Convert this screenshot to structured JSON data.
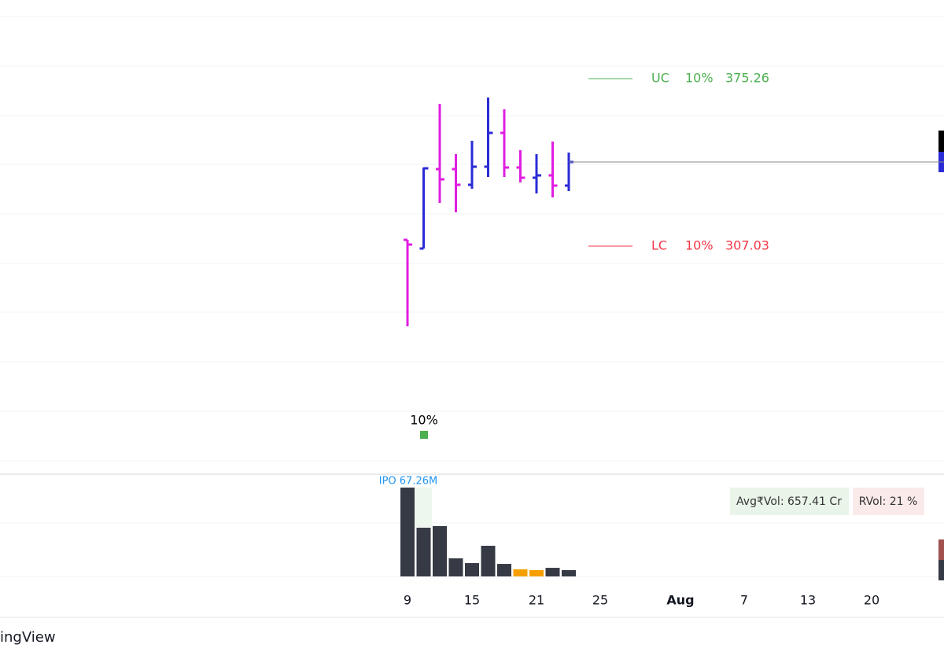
{
  "chart_data": {
    "type": "ohlc",
    "bar_colors": [
      "#e01ee0",
      "#2b2bd6",
      "#e01ee0",
      "#e01ee0",
      "#2b2bd6",
      "#2b2bd6",
      "#e01ee0",
      "#e01ee0",
      "#2b2bd6",
      "#e01ee0",
      "#2b2bd6"
    ],
    "open": [
      309.6,
      306.07,
      338.42,
      338.42,
      332.02,
      339.39,
      353.16,
      339.07,
      334.9,
      335.86,
      331.7
    ],
    "high": [
      309.6,
      339.07,
      365.01,
      344.51,
      349.96,
      367.57,
      362.77,
      346.11,
      344.51,
      349.64,
      345.15
    ],
    "low": [
      274.36,
      306.07,
      324.65,
      320.81,
      330.42,
      335.22,
      335.22,
      332.98,
      328.49,
      326.89,
      329.46
    ],
    "close": [
      307.68,
      338.74,
      334.26,
      332.02,
      339.39,
      353.16,
      339.07,
      334.9,
      335.86,
      331.7,
      341.31
    ],
    "ylim": [
      215.1,
      407.3
    ],
    "volume": [
      67.26,
      36.9,
      38.1,
      13.7,
      10.1,
      23.2,
      9.5,
      5.4,
      4.8,
      6.5,
      4.8
    ],
    "volume_colors": [
      "#363a45",
      "#363a45",
      "#363a45",
      "#363a45",
      "#363a45",
      "#363a45",
      "#363a45",
      "#f59f00",
      "#f59f00",
      "#363a45",
      "#363a45"
    ],
    "volume_ylim": [
      0,
      67.26
    ],
    "limits": [
      {
        "name": "UC",
        "pct": "10%",
        "value": 375.26,
        "color": "#4caf50"
      },
      {
        "name": "LC",
        "pct": "10%",
        "value": 307.03,
        "color": "#f23645"
      }
    ],
    "annotation": "10%",
    "volume_label": "IPO 67.26M",
    "avg_volume": "Avg₹Vol: 657.41 Cr",
    "relative_volume": "RVol: 21 %",
    "x_labels": [
      "9",
      "15",
      "21",
      "25",
      "Aug",
      "7",
      "13",
      "20"
    ],
    "watermark": "ingView"
  }
}
